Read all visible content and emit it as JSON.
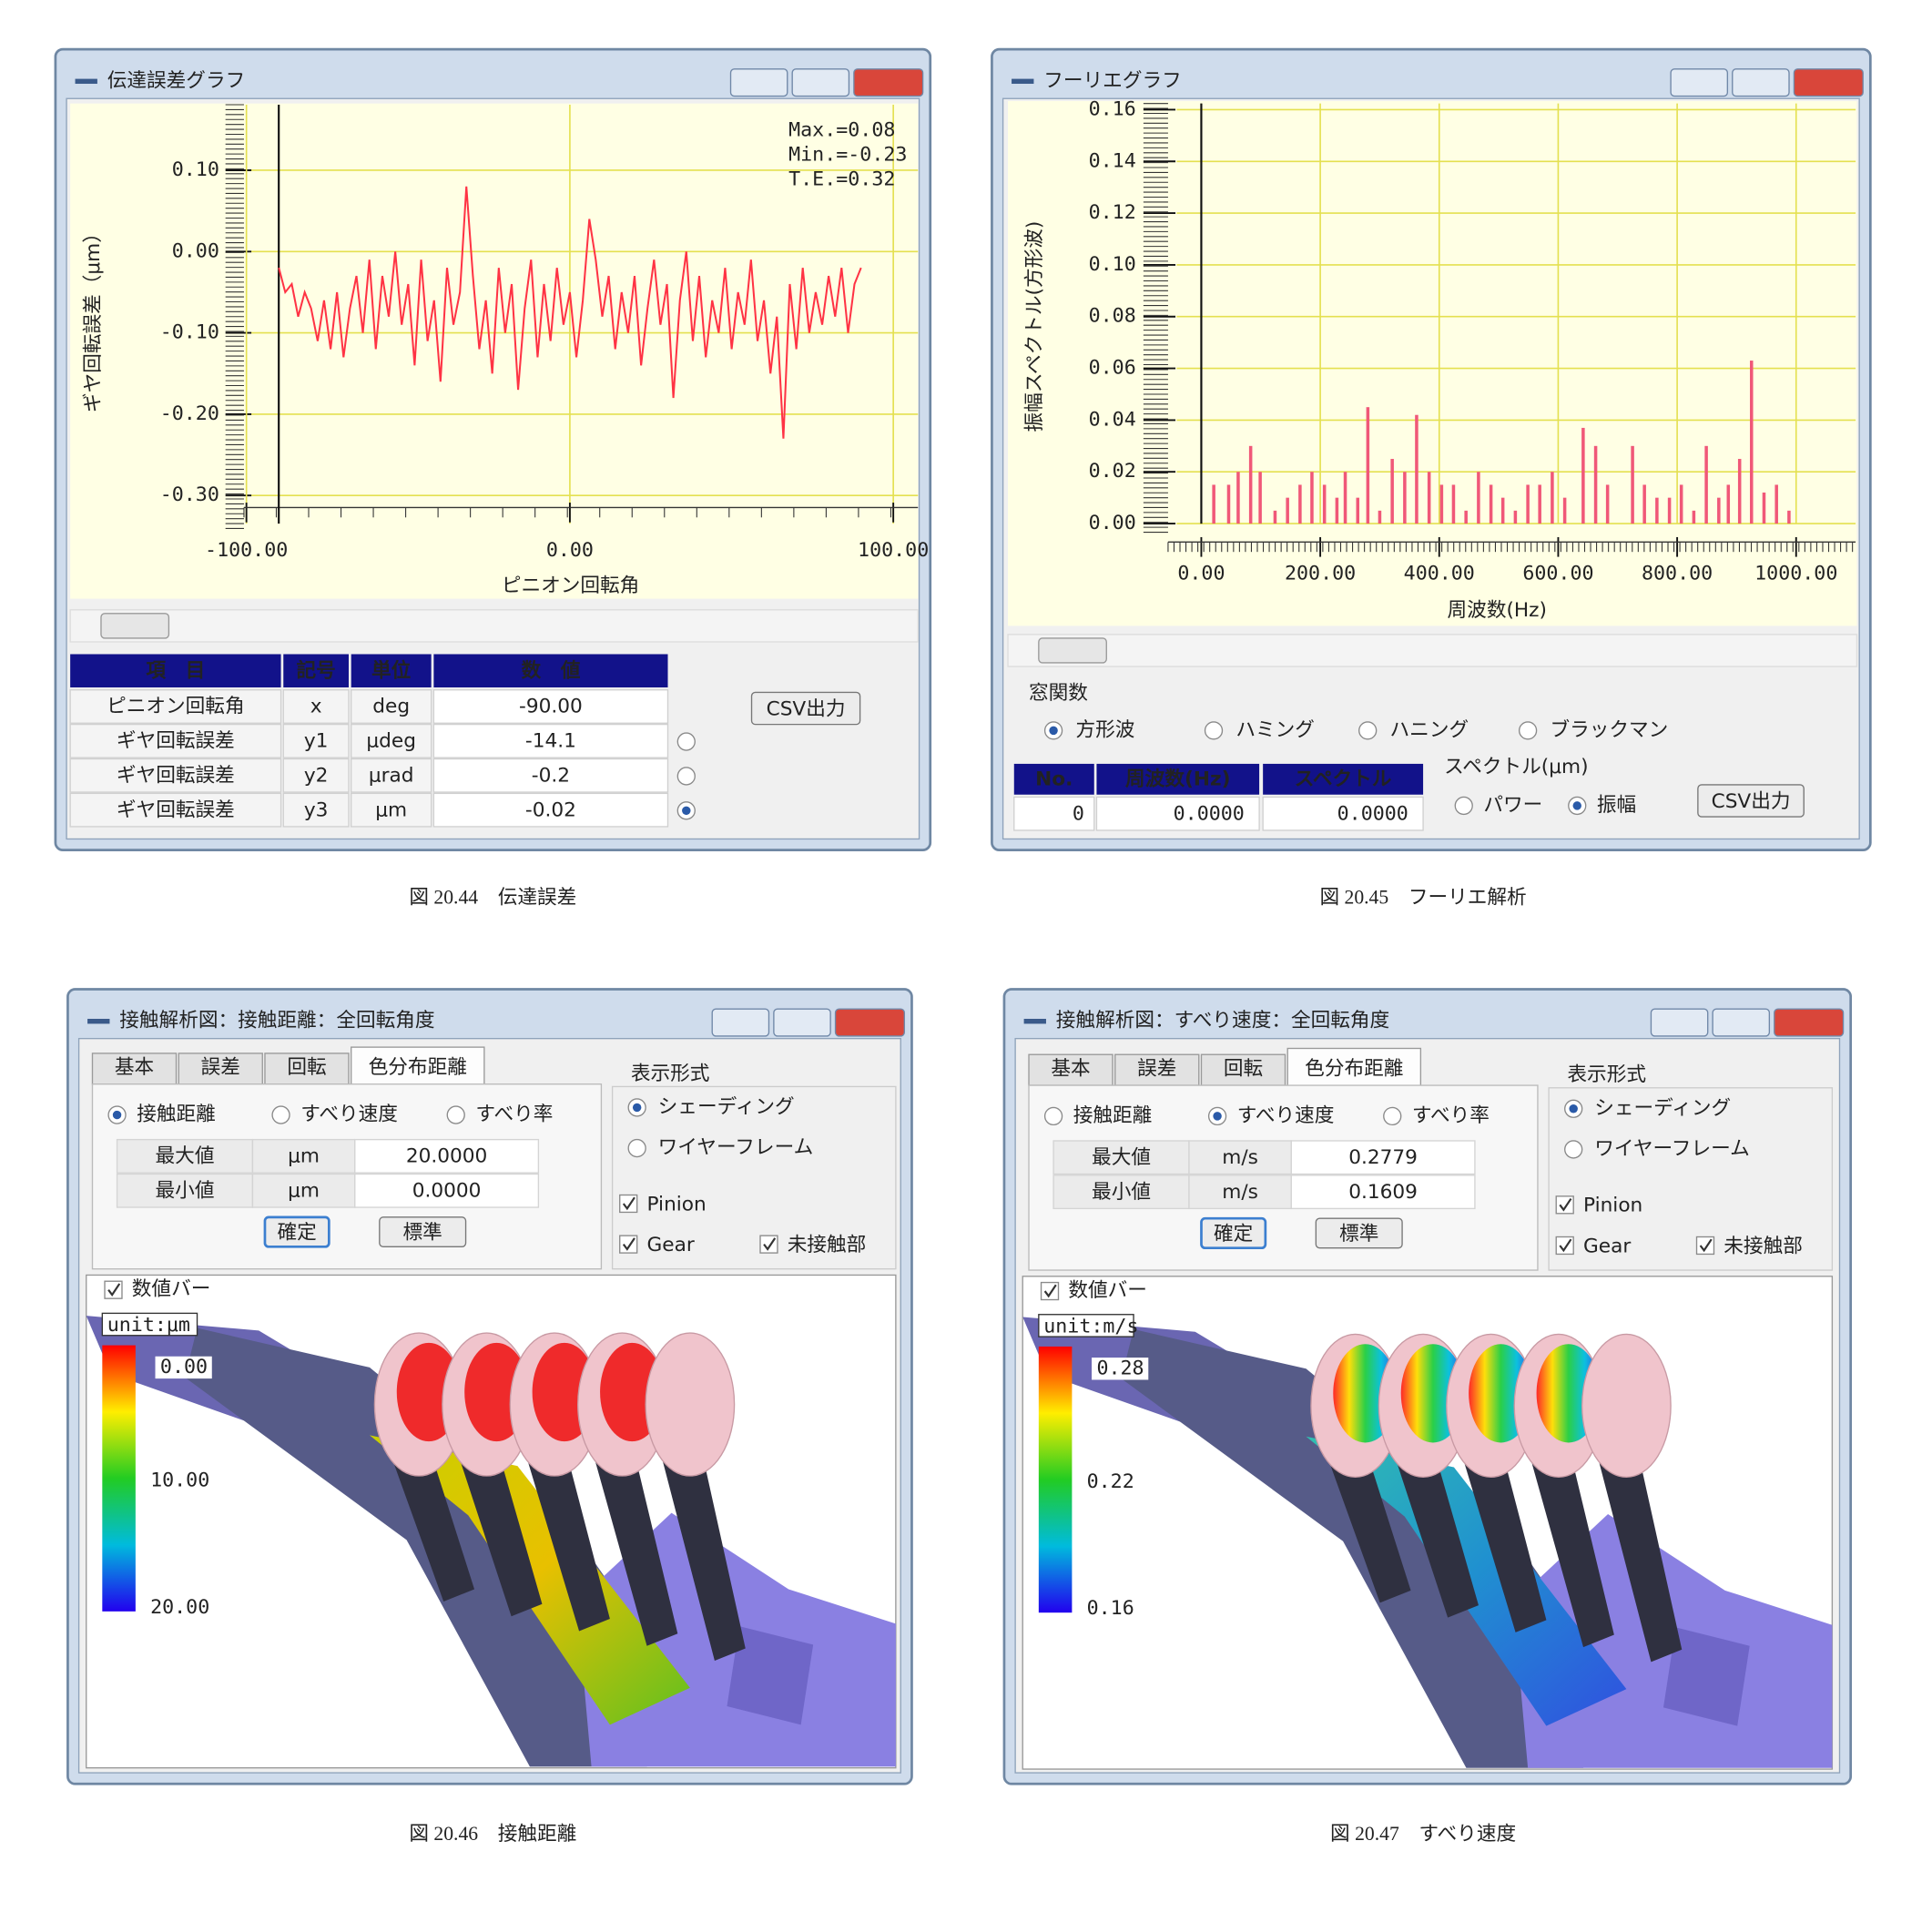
{
  "panels": [
    {
      "window_title": "伝達誤差グラフ",
      "caption": "図 20.44　伝達誤差",
      "chart": {
        "type": "line",
        "ylabel": "ギヤ回転誤差（μm）",
        "xlabel": "ピニオン回転角",
        "annotations": [
          "Max.=0.08",
          "Min.=-0.23",
          "T.E.=0.32"
        ],
        "color": "#ff3344",
        "grid": true,
        "xlim": [
          -100,
          100
        ],
        "xticks": [
          {
            "value": -100,
            "label": "-100.00"
          },
          {
            "value": 0,
            "label": "0.00"
          },
          {
            "value": 100,
            "label": "100.00"
          }
        ],
        "ylim": [
          -0.33,
          0.17
        ],
        "yticks": [
          {
            "value": 0.1,
            "label": "0.10"
          },
          {
            "value": 0,
            "label": "0.00"
          },
          {
            "value": -0.1,
            "label": "-0.10"
          },
          {
            "value": -0.2,
            "label": "-0.20"
          },
          {
            "value": -0.3,
            "label": "-0.30"
          }
        ],
        "x": [
          -90,
          -88,
          -86,
          -84,
          -82,
          -80,
          -78,
          -76,
          -74,
          -72,
          -70,
          -68,
          -66,
          -64,
          -62,
          -60,
          -58,
          -56,
          -54,
          -52,
          -50,
          -48,
          -46,
          -44,
          -42,
          -40,
          -38,
          -36,
          -34,
          -32,
          -30,
          -28,
          -26,
          -24,
          -22,
          -20,
          -18,
          -16,
          -14,
          -12,
          -10,
          -8,
          -6,
          -4,
          -2,
          0,
          2,
          4,
          6,
          8,
          10,
          12,
          14,
          16,
          18,
          20,
          22,
          24,
          26,
          28,
          30,
          32,
          34,
          36,
          38,
          40,
          42,
          44,
          46,
          48,
          50,
          52,
          54,
          56,
          58,
          60,
          62,
          64,
          66,
          68,
          70,
          72,
          74,
          76,
          78,
          80,
          82,
          84,
          86,
          88,
          90
        ],
        "values": [
          -0.02,
          -0.05,
          -0.04,
          -0.08,
          -0.05,
          -0.07,
          -0.11,
          -0.06,
          -0.12,
          -0.05,
          -0.13,
          -0.07,
          -0.03,
          -0.1,
          -0.01,
          -0.12,
          -0.03,
          -0.08,
          0.0,
          -0.09,
          -0.04,
          -0.14,
          -0.01,
          -0.11,
          -0.06,
          -0.16,
          -0.02,
          -0.09,
          -0.05,
          0.08,
          -0.03,
          -0.12,
          -0.06,
          -0.15,
          -0.02,
          -0.1,
          -0.04,
          -0.17,
          -0.07,
          -0.01,
          -0.13,
          -0.04,
          -0.11,
          -0.02,
          -0.09,
          -0.05,
          -0.13,
          -0.06,
          0.04,
          -0.01,
          -0.08,
          -0.03,
          -0.12,
          -0.05,
          -0.1,
          -0.03,
          -0.14,
          -0.07,
          -0.01,
          -0.09,
          -0.04,
          -0.18,
          -0.06,
          0.0,
          -0.11,
          -0.03,
          -0.13,
          -0.06,
          -0.1,
          -0.02,
          -0.12,
          -0.05,
          -0.09,
          -0.01,
          -0.11,
          -0.06,
          -0.15,
          -0.08,
          -0.23,
          -0.04,
          -0.12,
          -0.02,
          -0.1,
          -0.05,
          -0.09,
          -0.03,
          -0.08,
          -0.02,
          -0.1,
          -0.04,
          -0.02
        ]
      },
      "table": {
        "header": [
          "項　目",
          "記号",
          "単位",
          "数　値"
        ],
        "rows": [
          [
            "ピニオン回転角",
            "x",
            "deg",
            "-90.00"
          ],
          [
            "ギヤ回転誤差",
            "y1",
            "μdeg",
            "-14.1"
          ],
          [
            "ギヤ回転誤差",
            "y2",
            "μrad",
            "-0.2"
          ],
          [
            "ギヤ回転誤差",
            "y3",
            "μm",
            "-0.02"
          ]
        ],
        "selected": 3
      },
      "button": "CSV出力"
    },
    {
      "window_title": "フーリエグラフ",
      "caption": "図 20.45　フーリエ解析",
      "chart": {
        "type": "bar",
        "ylabel": "振幅スペクトル(方形波)",
        "xlabel": "周波数(Hz)",
        "color": "#f05878",
        "grid": true,
        "xlim": [
          -60,
          1100
        ],
        "xticks": [
          {
            "value": 0,
            "label": "0.00"
          },
          {
            "value": 200,
            "label": "200.00"
          },
          {
            "value": 400,
            "label": "400.00"
          },
          {
            "value": 600,
            "label": "600.00"
          },
          {
            "value": 800,
            "label": "800.00"
          },
          {
            "value": 1000,
            "label": "1000.00"
          }
        ],
        "ylim": [
          0,
          0.16
        ],
        "yticks": [
          0.16,
          0.14,
          0.12,
          {
            "value": 0.1,
            "label": "0.10"
          },
          0.08,
          0.06,
          0.04,
          0.02,
          {
            "value": 0,
            "label": "0.00"
          }
        ],
        "x": [
          21,
          46,
          62,
          83,
          99,
          124,
          145,
          166,
          186,
          207,
          228,
          242,
          263,
          280,
          300,
          321,
          342,
          362,
          383,
          404,
          424,
          445,
          466,
          487,
          507,
          528,
          549,
          569,
          590,
          611,
          642,
          663,
          683,
          725,
          745,
          766,
          787,
          807,
          828,
          849,
          870,
          886,
          905,
          925,
          946,
          967,
          988
        ],
        "values": [
          0.015,
          0.015,
          0.02,
          0.03,
          0.02,
          0.005,
          0.01,
          0.015,
          0.02,
          0.015,
          0.01,
          0.02,
          0.01,
          0.045,
          0.005,
          0.025,
          0.02,
          0.042,
          0.02,
          0.015,
          0.015,
          0.005,
          0.02,
          0.015,
          0.01,
          0.005,
          0.015,
          0.015,
          0.02,
          0.01,
          0.037,
          0.03,
          0.015,
          0.03,
          0.015,
          0.01,
          0.01,
          0.015,
          0.005,
          0.03,
          0.01,
          0.015,
          0.025,
          0.063,
          0.012,
          0.015,
          0.005
        ]
      },
      "window_function": {
        "label": "窓関数",
        "options": [
          "方形波",
          "ハミング",
          "ハニング",
          "ブラックマン"
        ],
        "selected": 0
      },
      "table": {
        "header": [
          "No.",
          "周波数(Hz)",
          "スペクトル"
        ],
        "rows": [
          [
            "0",
            "0.0000",
            "0.0000"
          ]
        ]
      },
      "spectrum": {
        "label": "スペクトル(μm)",
        "options": [
          "パワー",
          "振幅"
        ],
        "selected": 1
      },
      "button": "CSV出力"
    },
    {
      "window_title": "接触解析図：接触距離：全回転角度",
      "caption": "図 20.46　接触距離",
      "tabs": [
        "基本",
        "誤差",
        "回転",
        "色分布距離"
      ],
      "active_tab": 3,
      "modes": {
        "options": [
          "接触距離",
          "すべり速度",
          "すべり率"
        ],
        "selected": 0
      },
      "range": [
        [
          "最大値",
          "μm",
          "20.0000"
        ],
        [
          "最小値",
          "μm",
          "0.0000"
        ]
      ],
      "buttons": [
        "確定",
        "標準"
      ],
      "display": {
        "label": "表示形式",
        "options": [
          "シェーディング",
          "ワイヤーフレーム"
        ],
        "selected": 0
      },
      "checks": [
        "Pinion",
        "Gear",
        "未接触部"
      ],
      "bar_check": "数値バー",
      "unit": "unit:μm",
      "bar_labels": [
        "0.00",
        "10.00",
        "20.00"
      ]
    },
    {
      "window_title": "接触解析図：すべり速度：全回転角度",
      "caption": "図 20.47　すべり速度",
      "tabs": [
        "基本",
        "誤差",
        "回転",
        "色分布距離"
      ],
      "active_tab": 3,
      "modes": {
        "options": [
          "接触距離",
          "すべり速度",
          "すべり率"
        ],
        "selected": 1
      },
      "range": [
        [
          "最大値",
          "m/s",
          "0.2779"
        ],
        [
          "最小値",
          "m/s",
          "0.1609"
        ]
      ],
      "buttons": [
        "確定",
        "標準"
      ],
      "display": {
        "label": "表示形式",
        "options": [
          "シェーディング",
          "ワイヤーフレーム"
        ],
        "selected": 0
      },
      "checks": [
        "Pinion",
        "Gear",
        "未接触部"
      ],
      "bar_check": "数値バー",
      "unit": "unit:m/s",
      "bar_labels": [
        "0.28",
        "0.22",
        "0.16"
      ]
    }
  ]
}
